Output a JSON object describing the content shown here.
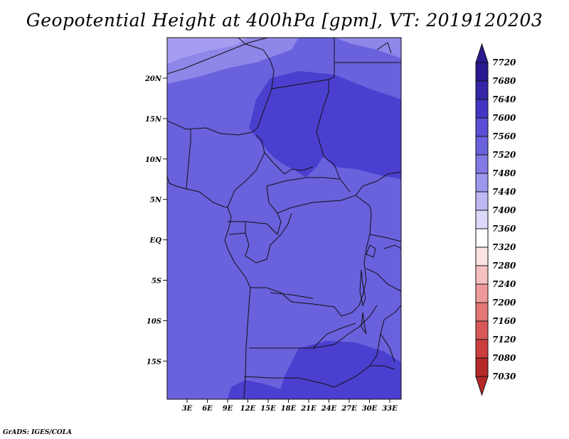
{
  "title": "Geopotential Height at 400hPa [gpm], VT: 2019120203",
  "footer": "GrADS: IGES/COLA",
  "map": {
    "lat_labels": [
      "20N",
      "15N",
      "10N",
      "5N",
      "EQ",
      "5S",
      "10S",
      "15S"
    ],
    "lon_labels": [
      "3E",
      "6E",
      "9E",
      "12E",
      "15E",
      "18E",
      "21E",
      "24E",
      "27E",
      "30E",
      "33E"
    ],
    "colors": {
      "base": "#6a61dd",
      "higher": "#4b3fcf",
      "light": "#8f86ea",
      "lightest": "#a59df0",
      "border": "#111111"
    }
  },
  "colorbar": {
    "levels": [
      "7720",
      "7680",
      "7640",
      "7600",
      "7560",
      "7520",
      "7480",
      "7440",
      "7400",
      "7360",
      "7320",
      "7280",
      "7240",
      "7200",
      "7160",
      "7120",
      "7080",
      "7030"
    ],
    "colors": [
      "#2a1a8f",
      "#3526a8",
      "#4436c2",
      "#5a4fd6",
      "#6a61dd",
      "#8279e6",
      "#9e97ee",
      "#bdb8f4",
      "#dcd9fa",
      "#ffffff",
      "#fde3e3",
      "#f7c0c0",
      "#ef9a9a",
      "#e47676",
      "#d95757",
      "#cc3d3d",
      "#b52828"
    ]
  }
}
